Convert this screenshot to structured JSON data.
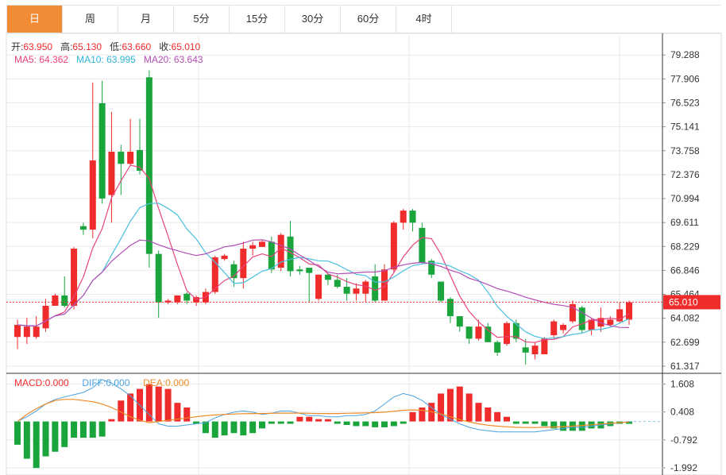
{
  "tabs": [
    "日",
    "周",
    "月",
    "5分",
    "15分",
    "30分",
    "60分",
    "4时"
  ],
  "active_tab": "日",
  "ohlc_info": {
    "open_label": "开:",
    "open": "63.950",
    "high_label": "高:",
    "high": "65.130",
    "low_label": "低:",
    "low": "63.660",
    "close_label": "收:",
    "close": "65.010"
  },
  "ma_info": {
    "ma5_label": "MA5:",
    "ma5": "64.362",
    "ma10_label": "MA10:",
    "ma10": "63.995",
    "ma20_label": "MA20:",
    "ma20": "63.643"
  },
  "macd_info": {
    "macd_label": "MACD:",
    "macd": "0.000",
    "diff_label": "DIFF:",
    "diff": "0.000",
    "dea_label": "DEA:",
    "dea": "0.000"
  },
  "colors": {
    "up": "#f02b2b",
    "down": "#1aa43c",
    "ma5": "#e8437c",
    "ma10": "#4bbfe0",
    "ma20": "#b44cb4",
    "diff": "#4aa3e0",
    "dea": "#f08a24",
    "grid": "#e9e9e9",
    "last_price_bg": "#f02b2b"
  },
  "chart_data": {
    "type": "candlestick",
    "price_axis": {
      "ticks": [
        "79.288",
        "77.906",
        "76.523",
        "75.141",
        "73.758",
        "72.376",
        "70.994",
        "69.611",
        "68.229",
        "66.846",
        "65.464",
        "64.082",
        "62.699",
        "61.317"
      ],
      "range": [
        60.9,
        80.4
      ]
    },
    "last_price": "65.010",
    "candles": [
      [
        63.0,
        63.7,
        64.0,
        62.3
      ],
      [
        63.0,
        63.6,
        64.1,
        62.6
      ],
      [
        63.0,
        63.6,
        64.2,
        62.9
      ],
      [
        63.5,
        64.8,
        65.2,
        63.3
      ],
      [
        64.8,
        65.4,
        65.5,
        64.8
      ],
      [
        65.4,
        64.8,
        66.5,
        64.7
      ],
      [
        64.8,
        68.1,
        68.2,
        64.6
      ],
      [
        69.4,
        69.2,
        69.6,
        68.9
      ],
      [
        69.2,
        73.2,
        77.7,
        68.7
      ],
      [
        76.5,
        71.0,
        77.8,
        70.7
      ],
      [
        71.2,
        73.7,
        76.0,
        69.6
      ],
      [
        73.7,
        73.0,
        74.1,
        71.2
      ],
      [
        73.0,
        73.7,
        75.6,
        72.9
      ],
      [
        73.8,
        72.6,
        75.6,
        72.4
      ],
      [
        78.0,
        67.8,
        78.4,
        67.0
      ],
      [
        67.8,
        65.0,
        68.0,
        64.1
      ],
      [
        65.0,
        65.1,
        65.2,
        64.9
      ],
      [
        65.0,
        65.4,
        65.4,
        64.9
      ],
      [
        65.5,
        65.1,
        65.6,
        64.9
      ],
      [
        65.0,
        65.3,
        65.4,
        64.8
      ],
      [
        65.0,
        65.6,
        65.8,
        64.9
      ],
      [
        65.6,
        67.6,
        67.7,
        65.5
      ],
      [
        67.5,
        67.7,
        67.8,
        67.4
      ],
      [
        67.2,
        66.4,
        67.4,
        65.9
      ],
      [
        66.4,
        68.1,
        68.5,
        65.8
      ],
      [
        68.1,
        68.3,
        68.5,
        67.7
      ],
      [
        68.2,
        68.5,
        68.6,
        68.2
      ],
      [
        68.5,
        66.9,
        68.8,
        66.7
      ],
      [
        67.0,
        68.9,
        69.0,
        66.8
      ],
      [
        68.8,
        66.8,
        69.7,
        66.5
      ],
      [
        66.9,
        66.8,
        67.1,
        66.6
      ],
      [
        67.0,
        66.7,
        67.0,
        65.0
      ],
      [
        65.2,
        66.6,
        66.6,
        65.1
      ],
      [
        66.6,
        66.3,
        66.7,
        66.0
      ],
      [
        66.3,
        65.9,
        66.6,
        65.8
      ],
      [
        65.9,
        65.5,
        66.4,
        65.1
      ],
      [
        65.5,
        65.8,
        66.1,
        65.1
      ],
      [
        65.5,
        66.2,
        66.3,
        65.0
      ],
      [
        66.5,
        65.1,
        67.2,
        65.0
      ],
      [
        65.1,
        66.9,
        67.2,
        65.1
      ],
      [
        66.9,
        69.6,
        69.7,
        66.7
      ],
      [
        69.6,
        70.3,
        70.4,
        69.2
      ],
      [
        70.3,
        69.6,
        70.4,
        69.1
      ],
      [
        69.3,
        67.3,
        69.6,
        67.2
      ],
      [
        67.4,
        66.6,
        67.5,
        66.4
      ],
      [
        66.2,
        65.1,
        66.2,
        65.0
      ],
      [
        65.2,
        64.2,
        65.3,
        63.8
      ],
      [
        64.2,
        63.6,
        64.2,
        63.3
      ],
      [
        63.6,
        62.9,
        63.6,
        62.6
      ],
      [
        62.9,
        63.6,
        64.0,
        62.8
      ],
      [
        63.6,
        62.7,
        63.8,
        62.7
      ],
      [
        62.7,
        62.1,
        62.8,
        61.9
      ],
      [
        62.6,
        63.8,
        63.9,
        62.5
      ],
      [
        63.8,
        62.9,
        64.0,
        62.7
      ],
      [
        62.4,
        62.1,
        62.9,
        61.4
      ],
      [
        62.0,
        62.5,
        62.7,
        61.7
      ],
      [
        62.0,
        62.9,
        63.0,
        62.0
      ],
      [
        63.1,
        63.9,
        64.0,
        62.9
      ],
      [
        63.4,
        63.7,
        63.8,
        63.2
      ],
      [
        63.9,
        64.9,
        65.1,
        63.8
      ],
      [
        64.7,
        63.4,
        64.8,
        63.2
      ],
      [
        63.4,
        64.0,
        64.1,
        63.1
      ],
      [
        63.6,
        64.1,
        64.7,
        63.3
      ],
      [
        63.7,
        64.0,
        64.2,
        63.6
      ],
      [
        63.9,
        64.6,
        65.0,
        63.8
      ],
      [
        64.0,
        65.0,
        65.1,
        63.7
      ]
    ],
    "macd": {
      "range": [
        -2.3,
        2.0
      ],
      "ticks": [
        "1.608",
        "0.408",
        "-0.792",
        "-1.992"
      ],
      "histogram": [
        -1.0,
        -1.6,
        -2.0,
        -1.5,
        -1.3,
        -1.1,
        -0.7,
        -0.7,
        -0.7,
        -0.65,
        0.1,
        0.9,
        1.2,
        1.4,
        1.6,
        1.5,
        1.4,
        0.8,
        0.6,
        -0.1,
        -0.5,
        -0.7,
        -0.6,
        -0.5,
        -0.6,
        -0.5,
        -0.3,
        -0.1,
        -0.1,
        -0.1,
        0.2,
        0.2,
        0.1,
        0.1,
        -0.1,
        -0.15,
        -0.2,
        -0.2,
        -0.25,
        -0.25,
        -0.2,
        -0.1,
        0.4,
        0.6,
        0.8,
        1.2,
        1.4,
        1.5,
        1.2,
        0.8,
        0.6,
        0.4,
        0.2,
        -0.1,
        -0.1,
        -0.1,
        -0.2,
        -0.3,
        -0.4,
        -0.4,
        -0.4,
        -0.3,
        -0.3,
        -0.2,
        -0.1,
        -0.1
      ],
      "diff": [
        0.0,
        0.2,
        0.45,
        0.75,
        0.95,
        1.05,
        1.15,
        1.25,
        1.45,
        1.8,
        1.65,
        1.4,
        1.1,
        0.7,
        0.3,
        -0.1,
        -0.2,
        -0.2,
        -0.15,
        -0.1,
        -0.05,
        0.15,
        0.3,
        0.4,
        0.45,
        0.4,
        0.3,
        0.35,
        0.45,
        0.45,
        0.35,
        0.25,
        0.25,
        0.2,
        0.2,
        0.25,
        0.25,
        0.3,
        0.45,
        0.75,
        1.05,
        1.2,
        1.1,
        0.9,
        0.6,
        0.3,
        0.1,
        -0.1,
        -0.25,
        -0.35,
        -0.4,
        -0.45,
        -0.45,
        -0.45,
        -0.45,
        -0.45,
        -0.4,
        -0.35,
        -0.3,
        -0.25,
        -0.25,
        -0.2,
        -0.15,
        -0.1,
        -0.05,
        0.0
      ],
      "dea": [
        0.0,
        0.3,
        0.55,
        0.75,
        0.9,
        0.95,
        0.95,
        0.9,
        0.85,
        0.75,
        0.6,
        0.4,
        0.2,
        0.05,
        -0.05,
        0.0,
        0.05,
        0.1,
        0.15,
        0.2,
        0.25,
        0.28,
        0.3,
        0.32,
        0.33,
        0.34,
        0.34,
        0.35,
        0.36,
        0.36,
        0.36,
        0.35,
        0.34,
        0.34,
        0.34,
        0.35,
        0.36,
        0.37,
        0.38,
        0.4,
        0.44,
        0.48,
        0.5,
        0.48,
        0.42,
        0.32,
        0.2,
        0.08,
        -0.02,
        -0.1,
        -0.16,
        -0.2,
        -0.23,
        -0.25,
        -0.26,
        -0.26,
        -0.25,
        -0.24,
        -0.22,
        -0.2,
        -0.17,
        -0.14,
        -0.11,
        -0.08,
        -0.05,
        -0.02
      ]
    }
  }
}
